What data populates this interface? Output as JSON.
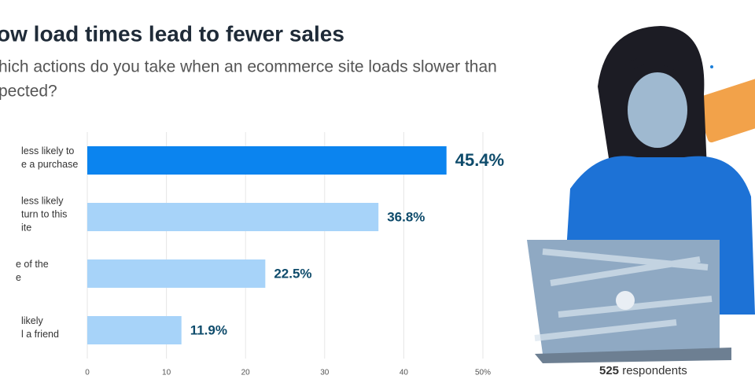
{
  "chart_data": {
    "type": "bar",
    "orientation": "horizontal",
    "title": "ow load times lead to fewer sales",
    "subtitle": [
      "hich actions do you take when an ecommerce site loads slower than",
      "pected?"
    ],
    "categories": [
      [
        "less likely to",
        "e a purchase"
      ],
      [
        "less likely",
        "turn to this",
        "ite"
      ],
      [
        "e of the",
        "e"
      ],
      [
        "likely",
        "l a friend"
      ]
    ],
    "values": [
      45.4,
      36.8,
      22.5,
      11.9
    ],
    "value_labels": [
      "45.4%",
      "36.8%",
      "22.5%",
      "11.9%"
    ],
    "colors": [
      "#0b84ef",
      "#a7d3f9",
      "#a7d3f9",
      "#a7d3f9"
    ],
    "xlim": [
      0,
      50
    ],
    "xticks": [
      0,
      10,
      20,
      30,
      40,
      {
        "value": 50,
        "label": "50%"
      }
    ],
    "grid": true,
    "respondents": {
      "count": 525,
      "label": "respondents"
    }
  }
}
